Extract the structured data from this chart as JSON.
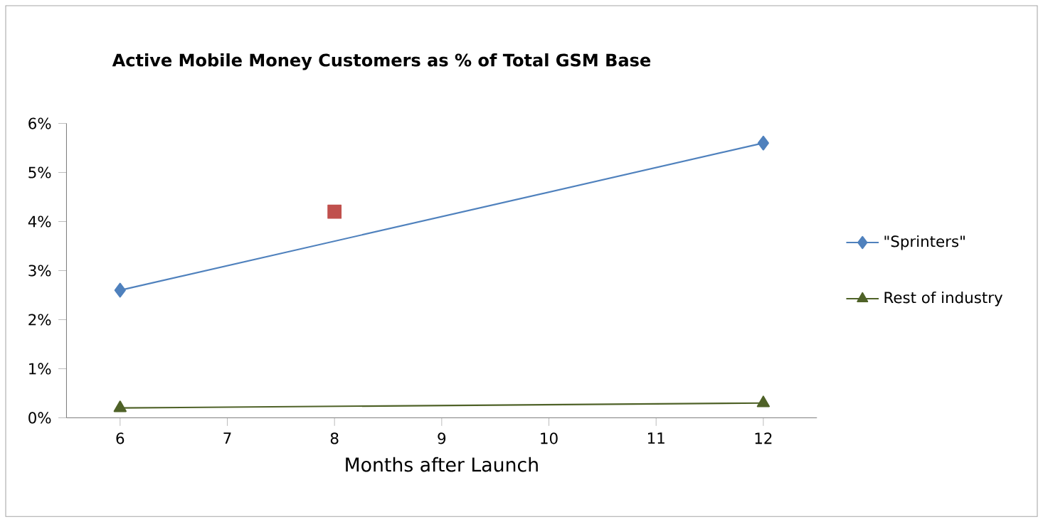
{
  "chart_data": {
    "type": "line",
    "title": "Active Mobile Money Customers as % of Total GSM Base",
    "xlabel": "Months after Launch",
    "xlim": [
      5.5,
      12.5
    ],
    "xticks": [
      6,
      7,
      8,
      9,
      10,
      11,
      12
    ],
    "ylim": [
      0,
      6
    ],
    "yticks": [
      {
        "value": 0,
        "label": "0%"
      },
      {
        "value": 1,
        "label": "1%"
      },
      {
        "value": 2,
        "label": "2%"
      },
      {
        "value": 3,
        "label": "3%"
      },
      {
        "value": 4,
        "label": "4%"
      },
      {
        "value": 5,
        "label": "5%"
      },
      {
        "value": 6,
        "label": "6%"
      }
    ],
    "legend": "right",
    "grid": false,
    "series": [
      {
        "name": "\"Sprinters\"",
        "color": "#4f81bd",
        "marker": "diamond",
        "x": [
          6,
          12
        ],
        "values": [
          2.6,
          5.6
        ]
      },
      {
        "color": "#c0504d",
        "type": "scatter",
        "marker": "square",
        "x": [
          8
        ],
        "values": [
          4.2
        ]
      },
      {
        "name": "Rest of industry",
        "color": "#4f6228",
        "marker": "triangle",
        "x": [
          6,
          12
        ],
        "values": [
          0.2,
          0.3
        ]
      }
    ]
  }
}
